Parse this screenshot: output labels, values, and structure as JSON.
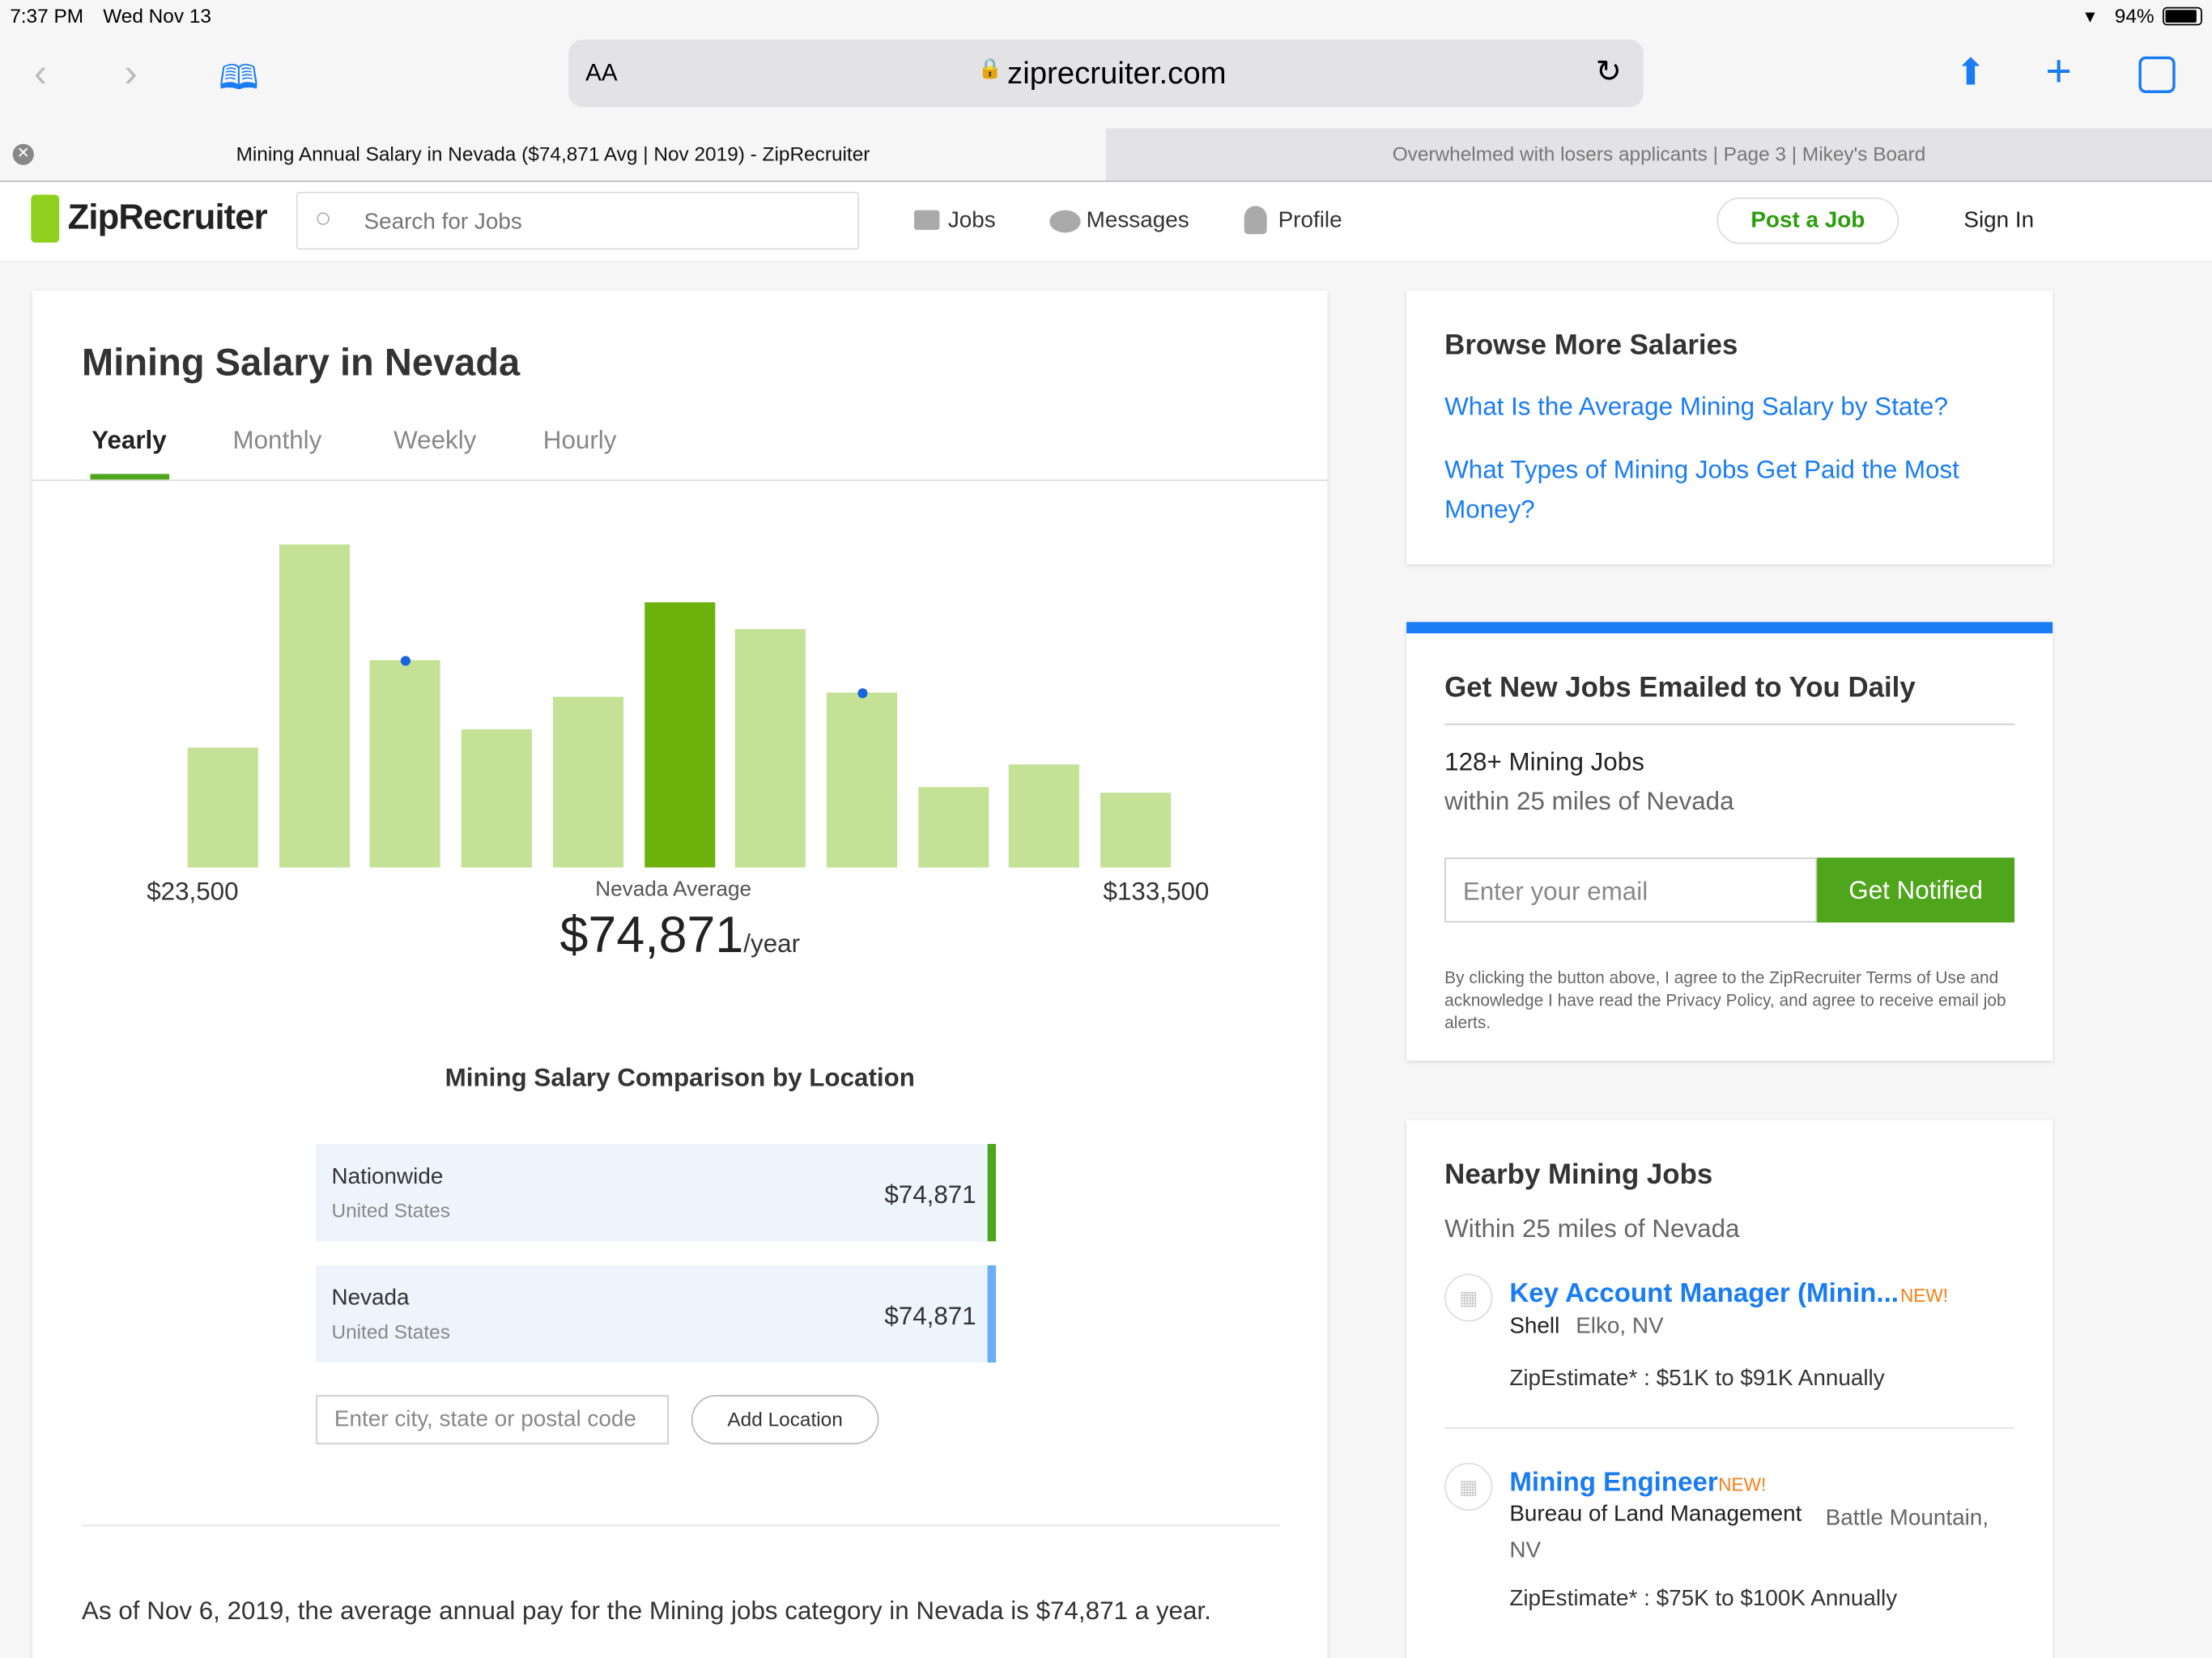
{
  "status": {
    "time": "7:37 PM",
    "date": "Wed Nov 13",
    "battery": "94%"
  },
  "browser": {
    "text_size": "AA",
    "url": "ziprecruiter.com",
    "tabs": [
      {
        "title": "Mining Annual Salary in Nevada ($74,871 Avg | Nov 2019) - ZipRecruiter",
        "active": true
      },
      {
        "title": "Overwhelmed with losers applicants | Page 3 | Mikey's Board",
        "active": false
      }
    ]
  },
  "nav": {
    "logo": "ZipRecruiter",
    "search_placeholder": "Search for Jobs",
    "jobs": "Jobs",
    "messages": "Messages",
    "profile": "Profile",
    "post_job": "Post a Job",
    "sign_in": "Sign In"
  },
  "main": {
    "title": "Mining Salary in Nevada",
    "tabs": [
      "Yearly",
      "Monthly",
      "Weekly",
      "Hourly"
    ],
    "active_tab": "Yearly",
    "chart": {
      "min_label": "$23,500",
      "max_label": "$133,500",
      "avg_label": "Nevada Average",
      "avg_value": "$74,871",
      "avg_unit": "/year"
    },
    "comparison_title": "Mining Salary Comparison by Location",
    "locations": [
      {
        "name": "Nationwide",
        "country": "United States",
        "value": "$74,871",
        "color": "#4fa51c"
      },
      {
        "name": "Nevada",
        "country": "United States",
        "value": "$74,871",
        "color": "#6aaef5"
      }
    ],
    "location_placeholder": "Enter city, state or postal code",
    "add_location": "Add Location",
    "summary": "As of Nov 6, 2019, the average annual pay for the Mining jobs category in Nevada is $74,871 a year."
  },
  "chart_data": {
    "type": "bar",
    "relative_heights": [
      37,
      100,
      64,
      43,
      53,
      82,
      74,
      54,
      25,
      32,
      23
    ],
    "highlight_index": 5,
    "marker_indices": [
      2,
      7
    ],
    "x_range": [
      "$23,500",
      "$133,500"
    ],
    "colors": {
      "bar": "#c4e196",
      "highlight": "#6db10d",
      "marker": "#1a62e0"
    }
  },
  "sidebar": {
    "browse_title": "Browse More Salaries",
    "browse_links": [
      "What Is the Average Mining Salary by State?",
      "What Types of Mining Jobs Get Paid the Most Money?"
    ],
    "alert_title": "Get New Jobs Emailed to You Daily",
    "alert_count": "128+ Mining Jobs",
    "alert_within": "within 25 miles of Nevada",
    "email_placeholder": "Enter your email",
    "notify": "Get Notified",
    "disclaimer": "By clicking the button above, I agree to the ZipRecruiter Terms of Use and acknowledge I have read the Privacy Policy, and agree to receive email job alerts.",
    "nearby_title": "Nearby Mining Jobs",
    "nearby_sub": "Within 25 miles of Nevada",
    "jobs": [
      {
        "title": "Key Account Manager (Minin...",
        "badge": "NEW!",
        "company": "Shell",
        "location": "Elko, NV",
        "estimate": "ZipEstimate* : $51K to $91K Annually"
      },
      {
        "title": "Mining Engineer",
        "badge": "NEW!",
        "company": "Bureau of Land Management",
        "location": "Battle Mountain, NV",
        "estimate": "ZipEstimate* : $75K to $100K Annually"
      }
    ]
  }
}
